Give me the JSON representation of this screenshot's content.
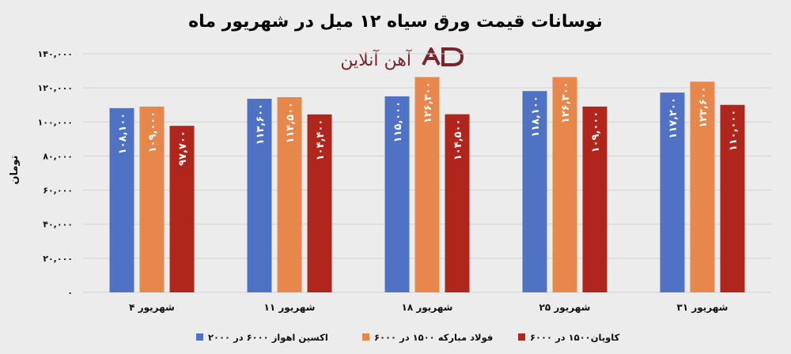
{
  "colors": {
    "background": "#ececec",
    "grid": "#d2d2d2",
    "logo": "#7a2630"
  },
  "logo": {
    "text": "آهن آنلاین",
    "icon": "logo-mark-icon"
  },
  "chart_data": {
    "type": "bar",
    "title": "نوسانات قیمت ورق سیاه ۱۲ میل در شهریور ماه",
    "ylabel": "تومان",
    "xlabel": "",
    "ylim": [
      0,
      140000
    ],
    "yticks": [
      0,
      20000,
      40000,
      60000,
      80000,
      100000,
      120000,
      140000
    ],
    "ytick_labels": [
      "۰",
      "۲۰,۰۰۰",
      "۴۰,۰۰۰",
      "۶۰,۰۰۰",
      "۸۰,۰۰۰",
      "۱۰۰,۰۰۰",
      "۱۲۰,۰۰۰",
      "۱۴۰,۰۰۰"
    ],
    "grid": true,
    "legend_position": "bottom",
    "categories": [
      "۴ شهریور",
      "۱۱ شهریور",
      "شهریور ۱۸",
      "۲۵ شهریور",
      "۳۱ شهریور"
    ],
    "series": [
      {
        "name": "اکسین اهواز ۶۰۰۰ در ۲۰۰۰",
        "color": "#4f72c4",
        "values": [
          108100,
          113600,
          115000,
          118100,
          117200
        ],
        "labels": [
          "۱۰۸,۱۰۰",
          "۱۱۳,۶۰۰",
          "۱۱۵,۰۰۰",
          "۱۱۸,۱۰۰",
          "۱۱۷,۲۰۰"
        ]
      },
      {
        "name": "فولاد مبارکه ۱۵۰۰ در ۶۰۰۰",
        "color": "#e8874b",
        "values": [
          109000,
          114500,
          126300,
          126300,
          123600
        ],
        "labels": [
          "۱۰۹,۰۰۰",
          "۱۱۴,۵۰۰",
          "۱۲۶,۳۰۰",
          "۱۲۶,۳۰۰",
          "۱۲۳,۶۰۰"
        ]
      },
      {
        "name": "کاویان۱۵۰۰ در ۶۰۰۰",
        "color": "#b0261c",
        "values": [
          97700,
          104400,
          104500,
          109000,
          110000
        ],
        "labels": [
          "۹۷,۷۰۰",
          "۱۰۴,۴۰۰",
          "۱۰۴,۵۰۰",
          "۱۰۹,۰۰۰",
          "۱۱۰,۰۰۰"
        ]
      }
    ]
  }
}
